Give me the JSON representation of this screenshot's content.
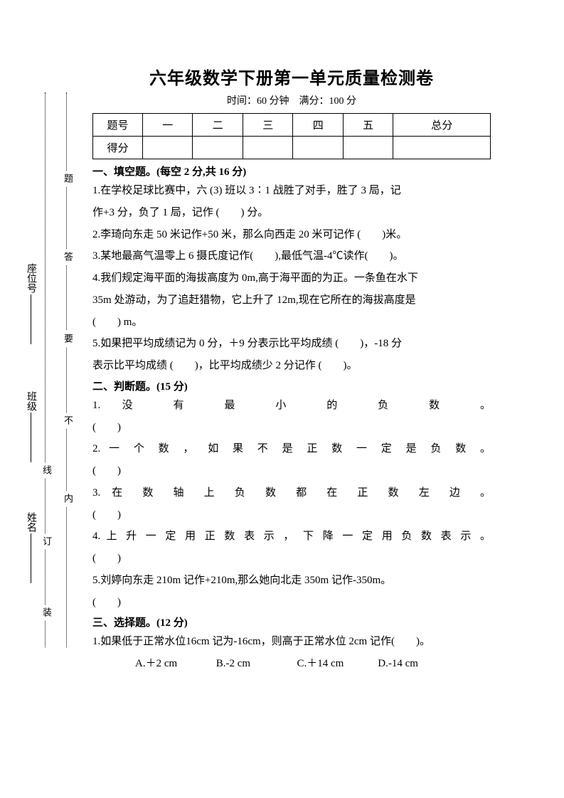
{
  "title": "六年级数学下册第一单元质量检测卷",
  "subtitle": "时间：60 分钟　满分：100 分",
  "score_table": {
    "row_labels": [
      "题号",
      "得分"
    ],
    "headers": [
      "一",
      "二",
      "三",
      "四",
      "五",
      "总分"
    ]
  },
  "section1": {
    "head": "一、填空题。(每空 2 分,共 16 分)",
    "q1a": "1.在学校足球比赛中，六 (3) 班以 3∶1 战胜了对手，胜了 3 局，记",
    "q1b": "作+3 分，负了 1 局，记作 (　　) 分。",
    "q2": "2.李琦向东走 50 米记作+50 米，那么向西走 20 米可记作 (　　)米。",
    "q3": "3.某地最高气温零上 6 摄氏度记作(　　),最低气温-4℃读作(　　)。",
    "q4a": "4.我们规定海平面的海拔高度为 0m,高于海平面的为正。一条鱼在水下",
    "q4b": "35m 处游动，为了追赶猎物，它上升了 12m,现在它所在的海拔高度是",
    "q4c": "(　　) m。",
    "q5a": "5.如果把平均成绩记为 0 分，＋9 分表示比平均成绩 (　　)，-18 分",
    "q5b": "表示比平均成绩 (　　)，比平均成绩少 2 分记作 (　　)。"
  },
  "section2": {
    "head": "二、判断题。(15 分)",
    "q1": "1. 没 有 最 小 的 负 数 。",
    "q2": "2. 一 个 数 ， 如 果 不 是 正 数 一 定 是 负 数 。",
    "q3": "3. 在 数 轴 上 负 数 都 在 正 数 左 边 。",
    "q4": "4. 上 升 一 定 用 正 数 表 示 ， 下 降 一 定 用 负 数 表 示 。",
    "q5": "5.刘婷向东走 210m 记作+210m,那么她向北走 350m 记作-350m。",
    "paren": "(　　)"
  },
  "section3": {
    "head": "三、选择题。(12 分)",
    "q1": "1.如果低于正常水位16cm 记为-16cm，则高于正常水位 2cm 记作(　　)。",
    "choices": {
      "a": "A.＋2 cm",
      "b": "B.-2 cm",
      "c": "C.＋14 cm",
      "d": "D.-14 cm"
    }
  },
  "margin": {
    "nei": "内",
    "bu": "不",
    "yao": "要",
    "da": "答",
    "ti": "题",
    "zhuang": "装",
    "ding": "订",
    "xian": "线",
    "name": "姓名",
    "class": "班级",
    "seat": "座位号"
  }
}
